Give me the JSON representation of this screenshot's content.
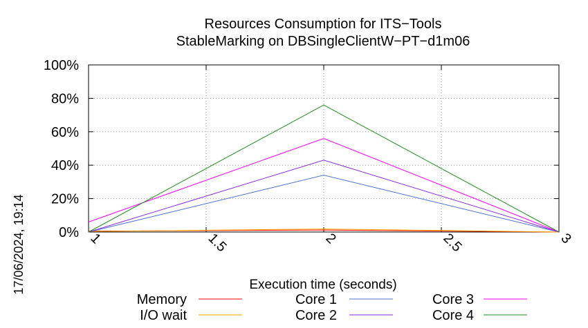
{
  "chart_data": {
    "type": "line",
    "title": "Resources Consumption for ITS−Tools",
    "subtitle": "StableMarking on DBSingleClientW−PT−d1m06",
    "xlabel": "Execution time (seconds)",
    "ylabel": "",
    "timestamp": "17/06/2024, 19:14",
    "xlim": [
      1,
      3
    ],
    "ylim": [
      0,
      100
    ],
    "x_ticks": [
      {
        "value": 1,
        "label": "1"
      },
      {
        "value": 1.5,
        "label": "1.5"
      },
      {
        "value": 2,
        "label": "2"
      },
      {
        "value": 2.5,
        "label": "2.5"
      },
      {
        "value": 3,
        "label": "3"
      }
    ],
    "y_ticks": [
      {
        "value": 0,
        "label": "0%"
      },
      {
        "value": 20,
        "label": "20%"
      },
      {
        "value": 40,
        "label": "40%"
      },
      {
        "value": 60,
        "label": "60%"
      },
      {
        "value": 80,
        "label": "80%"
      },
      {
        "value": 100,
        "label": "100%"
      }
    ],
    "grid": true,
    "legend_position": "bottom",
    "x": [
      1,
      2,
      3
    ],
    "series": [
      {
        "name": "Memory",
        "color": "#ff0000",
        "values": [
          0.5,
          1.2,
          0
        ]
      },
      {
        "name": "I/O wait",
        "color": "#ffa500",
        "values": [
          0.3,
          1.8,
          0
        ]
      },
      {
        "name": "Core 1",
        "color": "#4a6fd0",
        "values": [
          0,
          34,
          0
        ]
      },
      {
        "name": "Core 2",
        "color": "#8a2be2",
        "values": [
          0,
          43,
          0
        ]
      },
      {
        "name": "Core 3",
        "color": "#ff00ff",
        "values": [
          6,
          56,
          0
        ]
      },
      {
        "name": "Core 4",
        "color": "#228b22",
        "values": [
          0,
          76,
          0
        ]
      }
    ]
  }
}
